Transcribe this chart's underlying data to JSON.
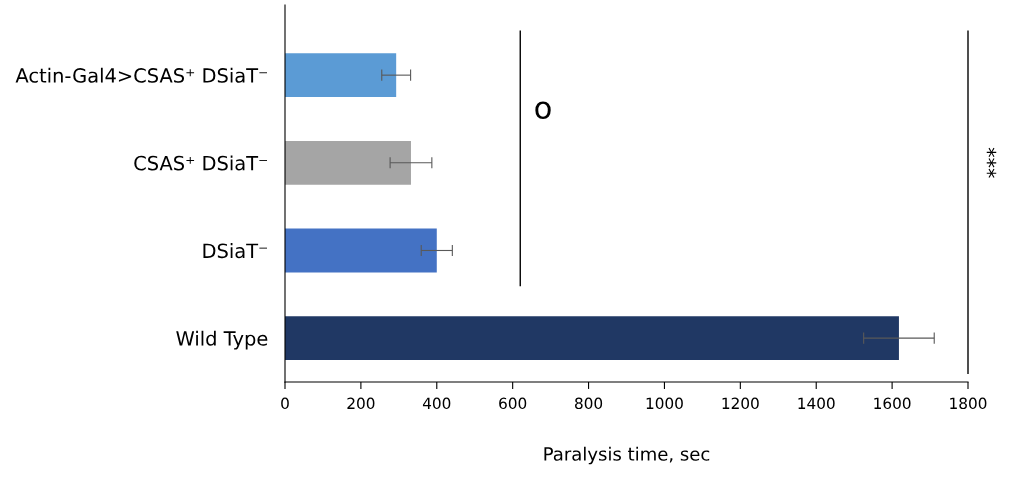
{
  "chart_data": {
    "type": "bar",
    "orientation": "horizontal",
    "xlabel": "Paralysis time, sec",
    "categories": [
      "Actin-Gal4>CSAS⁺ DSiaT⁻",
      "CSAS⁺ DSiaT⁻",
      "DSiaT⁻",
      "Wild Type"
    ],
    "values": [
      293,
      332,
      400,
      1618
    ],
    "errors": [
      38,
      55,
      41,
      93
    ],
    "colors": [
      "#5b9bd5",
      "#a5a5a5",
      "#4472c4",
      "#203864"
    ],
    "xlim": [
      0,
      1800
    ],
    "xticks": [
      0,
      200,
      400,
      600,
      800,
      1000,
      1200,
      1400,
      1600,
      1800
    ],
    "annotations": [
      "o",
      "***"
    ],
    "grid": false,
    "legend": false
  }
}
